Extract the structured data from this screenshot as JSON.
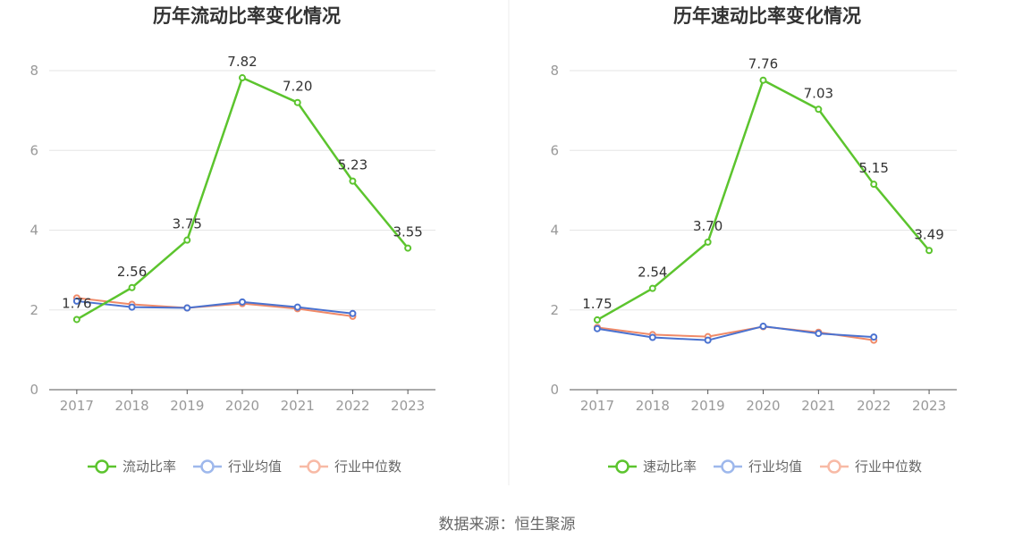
{
  "source": "数据来源：恒生聚源",
  "colors": {
    "main": "#5cc42e",
    "avg": "#4a72d0",
    "median": "#f08a68",
    "avgLegend": "#9eb8ec",
    "medianLegend": "#f8baa6",
    "grid": "#e6e6e6",
    "axis": "#555555"
  },
  "chart_data": [
    {
      "type": "line",
      "title": "历年流动比率变化情况",
      "categories": [
        "2017",
        "2018",
        "2019",
        "2020",
        "2021",
        "2022",
        "2023"
      ],
      "ylim": [
        0,
        8
      ],
      "yticks": [
        0,
        2,
        4,
        6,
        8
      ],
      "grid": true,
      "legend_position": "bottom",
      "series": [
        {
          "name": "流动比率",
          "values": [
            1.76,
            2.56,
            3.75,
            7.82,
            7.2,
            5.23,
            3.55
          ],
          "labels": [
            "1.76",
            "2.56",
            "3.75",
            "7.82",
            "7.20",
            "5.23",
            "3.55"
          ]
        },
        {
          "name": "行业均值",
          "values": [
            2.22,
            2.07,
            2.05,
            2.2,
            2.07,
            1.91,
            null
          ]
        },
        {
          "name": "行业中位数",
          "values": [
            2.3,
            2.14,
            2.05,
            2.16,
            2.03,
            1.84,
            null
          ]
        }
      ]
    },
    {
      "type": "line",
      "title": "历年速动比率变化情况",
      "categories": [
        "2017",
        "2018",
        "2019",
        "2020",
        "2021",
        "2022",
        "2023"
      ],
      "ylim": [
        0,
        8
      ],
      "yticks": [
        0,
        2,
        4,
        6,
        8
      ],
      "grid": true,
      "legend_position": "bottom",
      "series": [
        {
          "name": "速动比率",
          "values": [
            1.75,
            2.54,
            3.7,
            7.76,
            7.03,
            5.15,
            3.49
          ],
          "labels": [
            "1.75",
            "2.54",
            "3.70",
            "7.76",
            "7.03",
            "5.15",
            "3.49"
          ]
        },
        {
          "name": "行业均值",
          "values": [
            1.53,
            1.31,
            1.24,
            1.59,
            1.41,
            1.32,
            null
          ]
        },
        {
          "name": "行业中位数",
          "values": [
            1.56,
            1.38,
            1.33,
            1.58,
            1.44,
            1.24,
            null
          ]
        }
      ]
    }
  ]
}
